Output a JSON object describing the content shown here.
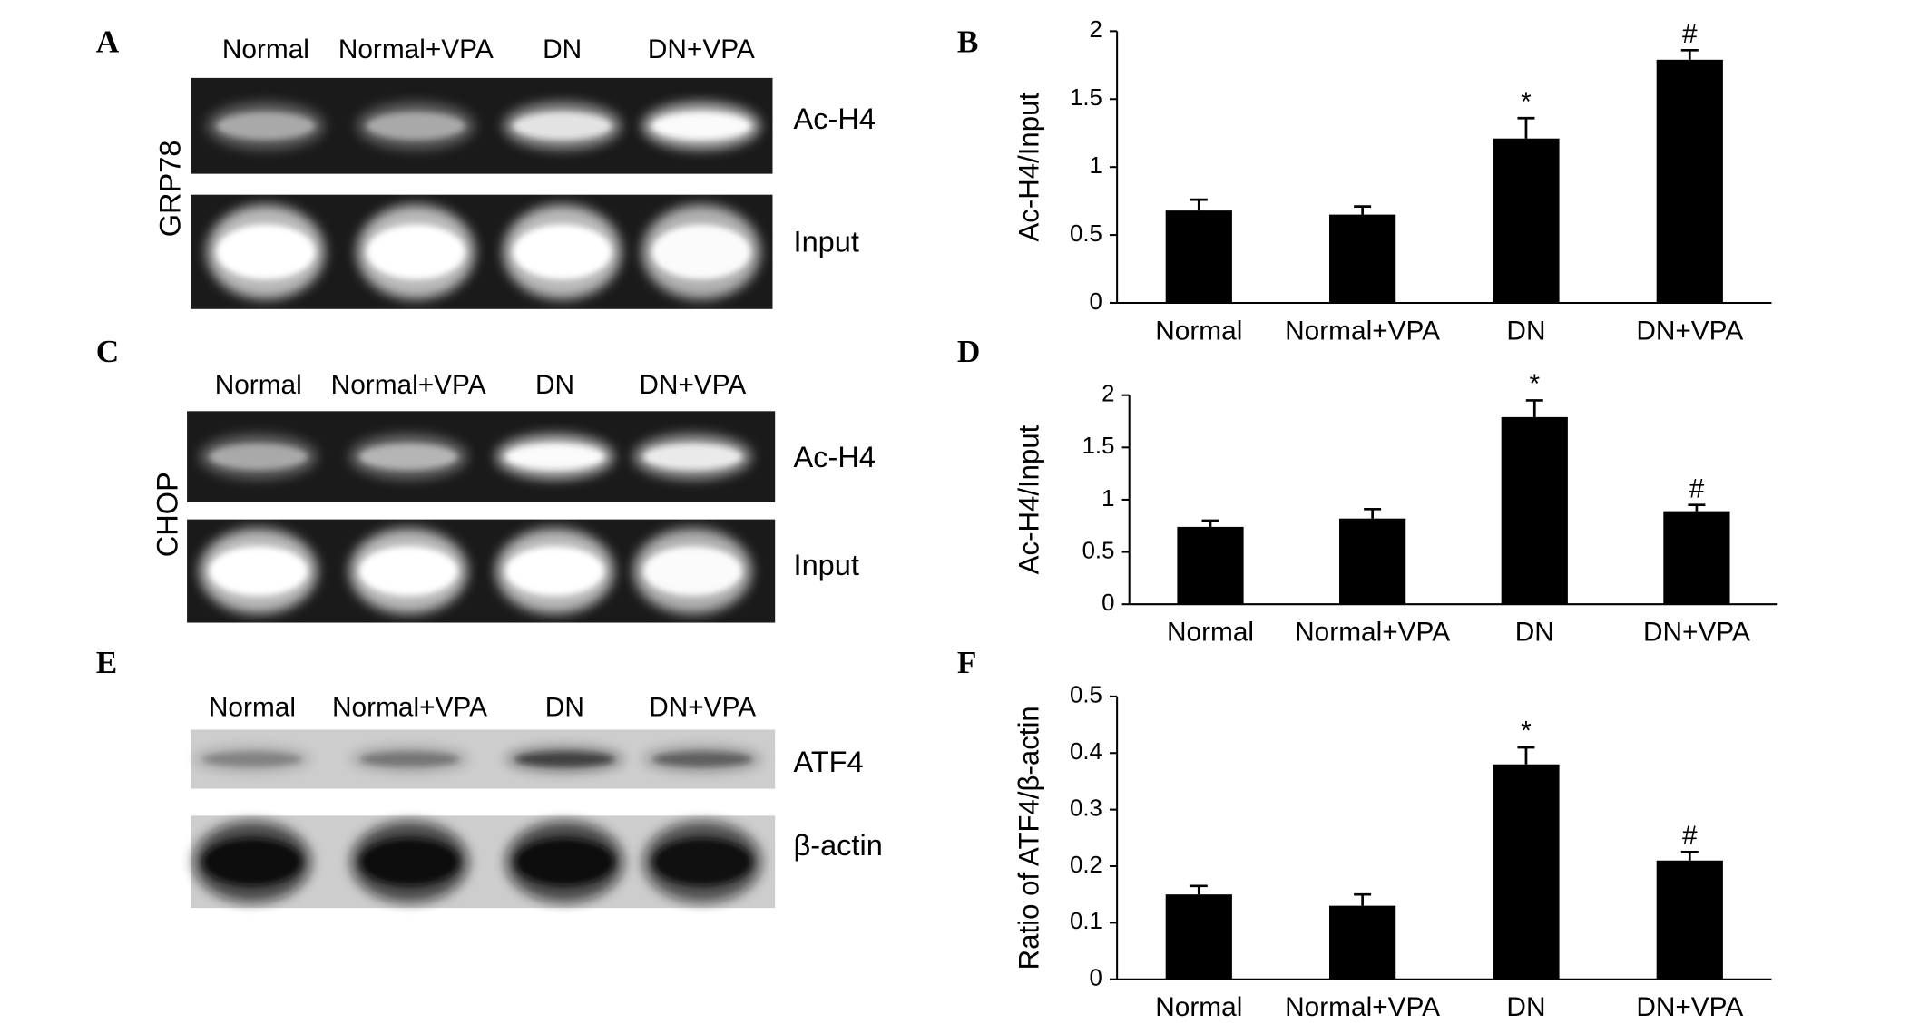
{
  "figure": {
    "panel_letters": [
      "A",
      "B",
      "C",
      "D",
      "E",
      "F"
    ]
  },
  "gels": [
    {
      "marker": "GRP78",
      "lanes": [
        "Normal",
        "Normal+VPA",
        "DN",
        "DN+VPA"
      ],
      "rows": [
        "Ac-H4",
        "Input"
      ]
    },
    {
      "marker": "CHOP",
      "lanes": [
        "Normal",
        "Normal+VPA",
        "DN",
        "DN+VPA"
      ],
      "rows": [
        "Ac-H4",
        "Input"
      ]
    },
    {
      "lanes": [
        "Normal",
        "Normal+VPA",
        "DN",
        "DN+VPA"
      ],
      "rows": [
        "ATF4",
        "β-actin"
      ]
    }
  ],
  "chart_data": [
    {
      "type": "bar",
      "ylabel": "Ac-H4/Input",
      "categories": [
        "Normal",
        "Normal+VPA",
        "DN",
        "DN+VPA"
      ],
      "series": [
        {
          "values": [
            0.68,
            0.65,
            1.21,
            1.79
          ],
          "errors": [
            0.08,
            0.06,
            0.15,
            0.07
          ],
          "color": "#000000"
        }
      ],
      "annotations": [
        {
          "category": "DN",
          "text": "*"
        },
        {
          "category": "DN+VPA",
          "text": "#"
        }
      ],
      "ylim": [
        0,
        2
      ],
      "yticks": [
        0,
        0.5,
        1,
        1.5,
        2
      ]
    },
    {
      "type": "bar",
      "ylabel": "Ac-H4/Input",
      "categories": [
        "Normal",
        "Normal+VPA",
        "DN",
        "DN+VPA"
      ],
      "series": [
        {
          "values": [
            0.74,
            0.82,
            1.79,
            0.89
          ],
          "errors": [
            0.06,
            0.09,
            0.16,
            0.06
          ],
          "color": "#000000"
        }
      ],
      "annotations": [
        {
          "category": "DN",
          "text": "*"
        },
        {
          "category": "DN+VPA",
          "text": "#"
        }
      ],
      "ylim": [
        0,
        2
      ],
      "yticks": [
        0,
        0.5,
        1,
        1.5,
        2
      ]
    },
    {
      "type": "bar",
      "ylabel": "Ratio of ATF4/β-actin",
      "categories": [
        "Normal",
        "Normal+VPA",
        "DN",
        "DN+VPA"
      ],
      "series": [
        {
          "values": [
            0.15,
            0.13,
            0.38,
            0.21
          ],
          "errors": [
            0.015,
            0.02,
            0.03,
            0.015
          ],
          "color": "#000000"
        }
      ],
      "annotations": [
        {
          "category": "DN",
          "text": "*"
        },
        {
          "category": "DN+VPA",
          "text": "#"
        }
      ],
      "ylim": [
        0,
        0.5
      ],
      "yticks": [
        0,
        0.1,
        0.2,
        0.3,
        0.4,
        0.5
      ]
    }
  ]
}
